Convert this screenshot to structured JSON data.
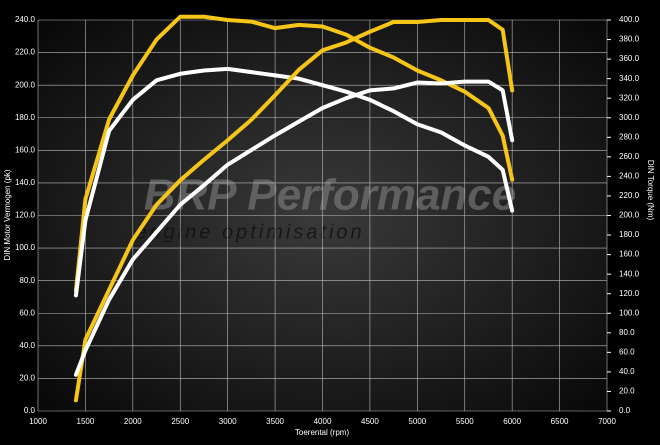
{
  "chart_data": {
    "type": "line",
    "x_label": "Toerental (rpm)",
    "y_label": "DIN Motor Vermogen (pk)",
    "y2_label": "DIN Torque (Nm)",
    "annotations": [
      "BRP Performance",
      "engine optimisation"
    ],
    "x": [
      1400,
      1500,
      1750,
      2000,
      2250,
      2500,
      2750,
      3000,
      3250,
      3500,
      3750,
      4000,
      4250,
      4500,
      4750,
      5000,
      5250,
      5500,
      5750,
      5900,
      6000
    ],
    "series": [
      {
        "color": "#f5c518",
        "values": [
          74,
          130,
          179,
          206,
          228,
          242,
          242,
          240,
          239,
          235,
          237,
          236,
          231,
          223,
          217,
          209,
          203,
          196,
          186,
          169,
          142
        ]
      },
      {
        "color": "#ffffff",
        "values": [
          71,
          117,
          172,
          191,
          203,
          207,
          209,
          210,
          208,
          206,
          204,
          200,
          196,
          191,
          184,
          176,
          171,
          163,
          156,
          148,
          123
        ]
      },
      {
        "color": "#f5c518",
        "axis": "y2",
        "values": [
          11,
          73,
          124,
          175,
          211,
          236,
          257,
          277,
          298,
          323,
          349,
          369,
          377,
          388,
          398,
          398,
          400,
          400,
          400,
          390,
          328
        ]
      },
      {
        "color": "#ffffff",
        "axis": "y2",
        "values": [
          37,
          62,
          114,
          155,
          183,
          211,
          231,
          252,
          267,
          282,
          296,
          310,
          320,
          328,
          330,
          336,
          335,
          337,
          337,
          328,
          277
        ]
      }
    ],
    "xlim": [
      1000,
      7000
    ],
    "xticks": [
      1000,
      1500,
      2000,
      2500,
      3000,
      3500,
      4000,
      4500,
      5000,
      5500,
      6000,
      6500,
      7000
    ],
    "ylim": [
      0,
      240
    ],
    "yticks": [
      {
        "value": 0,
        "label": "0.0"
      },
      {
        "value": 20,
        "label": "20.0"
      },
      {
        "value": 40,
        "label": "40.0"
      },
      {
        "value": 60,
        "label": "60.0"
      },
      {
        "value": 80,
        "label": "80.0"
      },
      {
        "value": 100,
        "label": "100.0"
      },
      {
        "value": 120,
        "label": "120.0"
      },
      {
        "value": 140,
        "label": "140.0"
      },
      {
        "value": 160,
        "label": "160.0"
      },
      {
        "value": 180,
        "label": "180.0"
      },
      {
        "value": 200,
        "label": "200.0"
      },
      {
        "value": 220,
        "label": "220.0"
      },
      {
        "value": 240,
        "label": "240.0"
      }
    ],
    "y2lim": [
      0,
      400
    ],
    "y2ticks": [
      {
        "value": 0,
        "label": "0.0"
      },
      {
        "value": 20,
        "label": "20.0"
      },
      {
        "value": 40,
        "label": "40.0"
      },
      {
        "value": 60,
        "label": "60.0"
      },
      {
        "value": 80,
        "label": "80.0"
      },
      {
        "value": 100,
        "label": "100.0"
      },
      {
        "value": 120,
        "label": "120.0"
      },
      {
        "value": 140,
        "label": "140.0"
      },
      {
        "value": 160,
        "label": "160.0"
      },
      {
        "value": 180,
        "label": "180.0"
      },
      {
        "value": 200,
        "label": "200.0"
      },
      {
        "value": 220,
        "label": "220.0"
      },
      {
        "value": 240,
        "label": "240.0"
      },
      {
        "value": 260,
        "label": "260.0"
      },
      {
        "value": 280,
        "label": "280.0"
      },
      {
        "value": 300,
        "label": "300.0"
      },
      {
        "value": 320,
        "label": "320.0"
      },
      {
        "value": 340,
        "label": "340.0"
      },
      {
        "value": 360,
        "label": "360.0"
      },
      {
        "value": 380,
        "label": "380.0"
      },
      {
        "value": 400,
        "label": "400.0"
      }
    ],
    "grid": true
  }
}
